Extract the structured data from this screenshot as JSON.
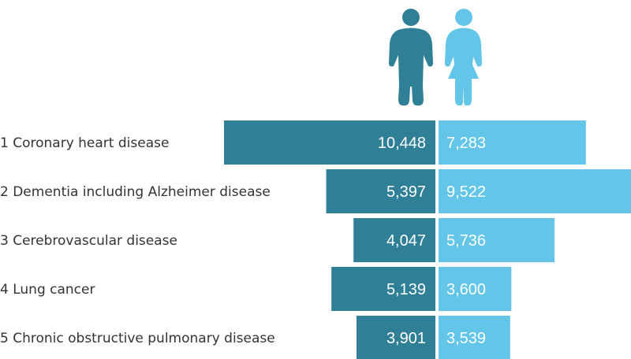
{
  "chart_data": {
    "type": "bar",
    "orientation": "horizontal-butterfly",
    "categories": [
      "Coronary heart disease",
      "Dementia including Alzheimer disease",
      "Cerebrovascular disease",
      "Lung cancer",
      "Chronic obstructive pulmonary disease"
    ],
    "ranks": [
      "1",
      "2",
      "3",
      "4",
      "5"
    ],
    "series": [
      {
        "icon": "male-figure-icon",
        "color": "#2f7f96",
        "values": [
          10448,
          5397,
          4047,
          5139,
          3901
        ]
      },
      {
        "icon": "female-figure-icon",
        "color": "#63c6e8",
        "values": [
          7283,
          9522,
          5736,
          3600,
          3539
        ]
      }
    ],
    "value_labels": {
      "male": [
        "10,448",
        "5,397",
        "4,047",
        "5,139",
        "3,901"
      ],
      "female": [
        "7,283",
        "9,522",
        "5,736",
        "3,600",
        "3,539"
      ]
    }
  }
}
